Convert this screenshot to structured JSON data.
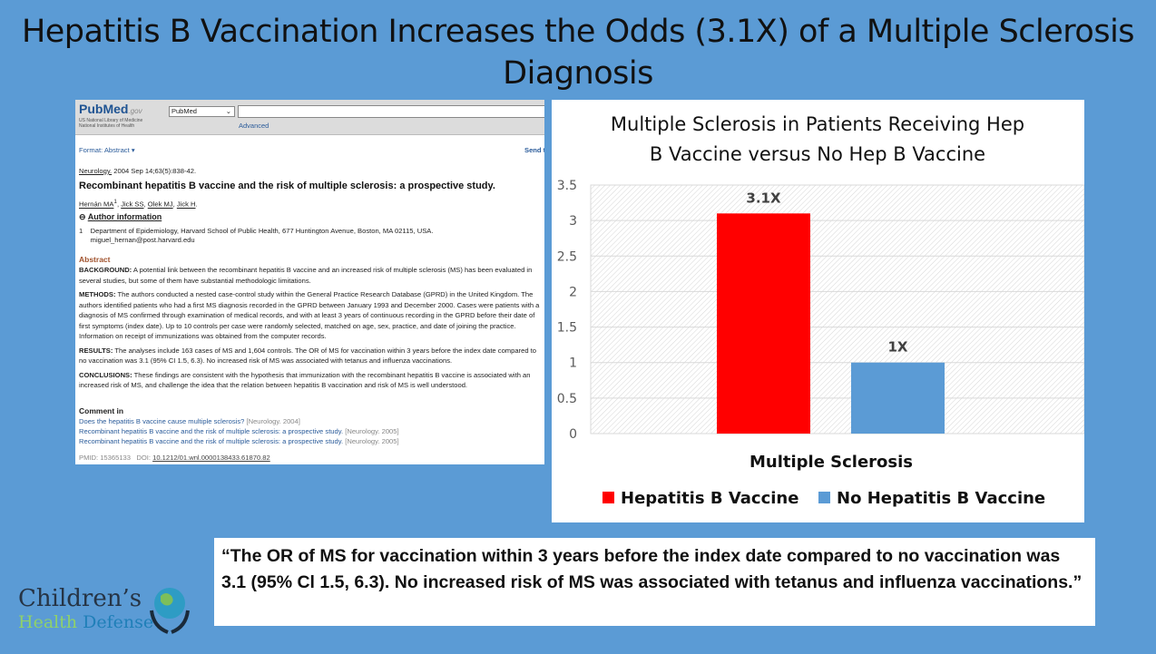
{
  "slide": {
    "title": "Hepatitis B Vaccination Increases the Odds (3.1X) of a Multiple Sclerosis Diagnosis",
    "quote": "“The OR of MS for vaccination within 3 years before the index date compared to no vaccination was 3.1 (95% Cl 1.5, 6.3). No increased risk of MS was associated with tetanus and influenza vaccinations.”",
    "logo": {
      "line1": "Children’s",
      "line2a": "Health",
      "line2b": "Defense"
    },
    "colors": {
      "background": "#5b9bd5",
      "hep_b": "#ff0000",
      "no_hep_b": "#5b9bd5"
    }
  },
  "pubmed": {
    "logo": "PubMed",
    "logo_suffix": ".gov",
    "nlm1": "US National Library of Medicine",
    "nlm2": "National Institutes of Health",
    "db_select": "PubMed",
    "advanced": "Advanced",
    "format": "Format: Abstract ▾",
    "send": "Send t",
    "citation_journal": "Neurology.",
    "citation_rest": " 2004 Sep 14;63(5):838-42.",
    "title": "Recombinant hepatitis B vaccine and the risk of multiple sclerosis: a prospective study.",
    "authors": [
      "Hernán MA",
      "Jick SS",
      "Olek MJ",
      "Jick H"
    ],
    "author_info": "Author information",
    "affiliation": "Department of Epidemiology, Harvard School of Public Health, 677 Huntington Avenue, Boston, MA 02115, USA.",
    "email": "miguel_hernan@post.harvard.edu",
    "abstract_heading": "Abstract",
    "sections": [
      {
        "label": "BACKGROUND:",
        "text": " A potential link between the recombinant hepatitis B vaccine and an increased risk of multiple sclerosis (MS) has been evaluated in several studies, but some of them have substantial methodologic limitations."
      },
      {
        "label": "METHODS:",
        "text": " The authors conducted a nested case-control study within the General Practice Research Database (GPRD) in the United Kingdom. The authors identified patients who had a first MS diagnosis recorded in the GPRD between January 1993 and December 2000. Cases were patients with a diagnosis of MS confirmed through examination of medical records, and with at least 3 years of continuous recording in the GPRD before their date of first symptoms (index date). Up to 10 controls per case were randomly selected, matched on age, sex, practice, and date of joining the practice. Information on receipt of immunizations was obtained from the computer records."
      },
      {
        "label": "RESULTS:",
        "text": " The analyses include 163 cases of MS and 1,604 controls. The OR of MS for vaccination within 3 years before the index date compared to no vaccination was 3.1 (95% CI 1.5, 6.3). No increased risk of MS was associated with tetanus and influenza vaccinations."
      },
      {
        "label": "CONCLUSIONS:",
        "text": " These findings are consistent with the hypothesis that immunization with the recombinant hepatitis B vaccine is associated with an increased risk of MS, and challenge the idea that the relation between hepatitis B vaccination and risk of MS is well understood."
      }
    ],
    "comment_heading": "Comment in",
    "comments": [
      {
        "title": "Does the hepatitis B vaccine cause multiple sclerosis?",
        "source": "[Neurology. 2004]"
      },
      {
        "title": "Recombinant hepatitis B vaccine and the risk of multiple sclerosis: a prospective study.",
        "source": "[Neurology. 2005]"
      },
      {
        "title": "Recombinant hepatitis B vaccine and the risk of multiple sclerosis: a prospective study.",
        "source": "[Neurology. 2005]"
      }
    ],
    "pmid": "PMID: 15365133",
    "doi_label": "DOI:",
    "doi": "10.1212/01.wnl.0000138433.61870.82"
  },
  "chart_data": {
    "type": "bar",
    "title": "Multiple Sclerosis in Patients Receiving Hep B Vaccine versus No Hep B Vaccine",
    "categories": [
      "Multiple Sclerosis"
    ],
    "series": [
      {
        "name": "Hepatitis B Vaccine",
        "values": [
          3.1
        ],
        "label": "3.1X",
        "color": "#ff0000"
      },
      {
        "name": "No Hepatitis B Vaccine",
        "values": [
          1
        ],
        "label": "1X",
        "color": "#5b9bd5"
      }
    ],
    "ylim": [
      0,
      3.5
    ],
    "yticks": [
      "0",
      "0.5",
      "1",
      "1.5",
      "2",
      "2.5",
      "3",
      "3.5"
    ],
    "grid": true,
    "legend": "bottom"
  }
}
